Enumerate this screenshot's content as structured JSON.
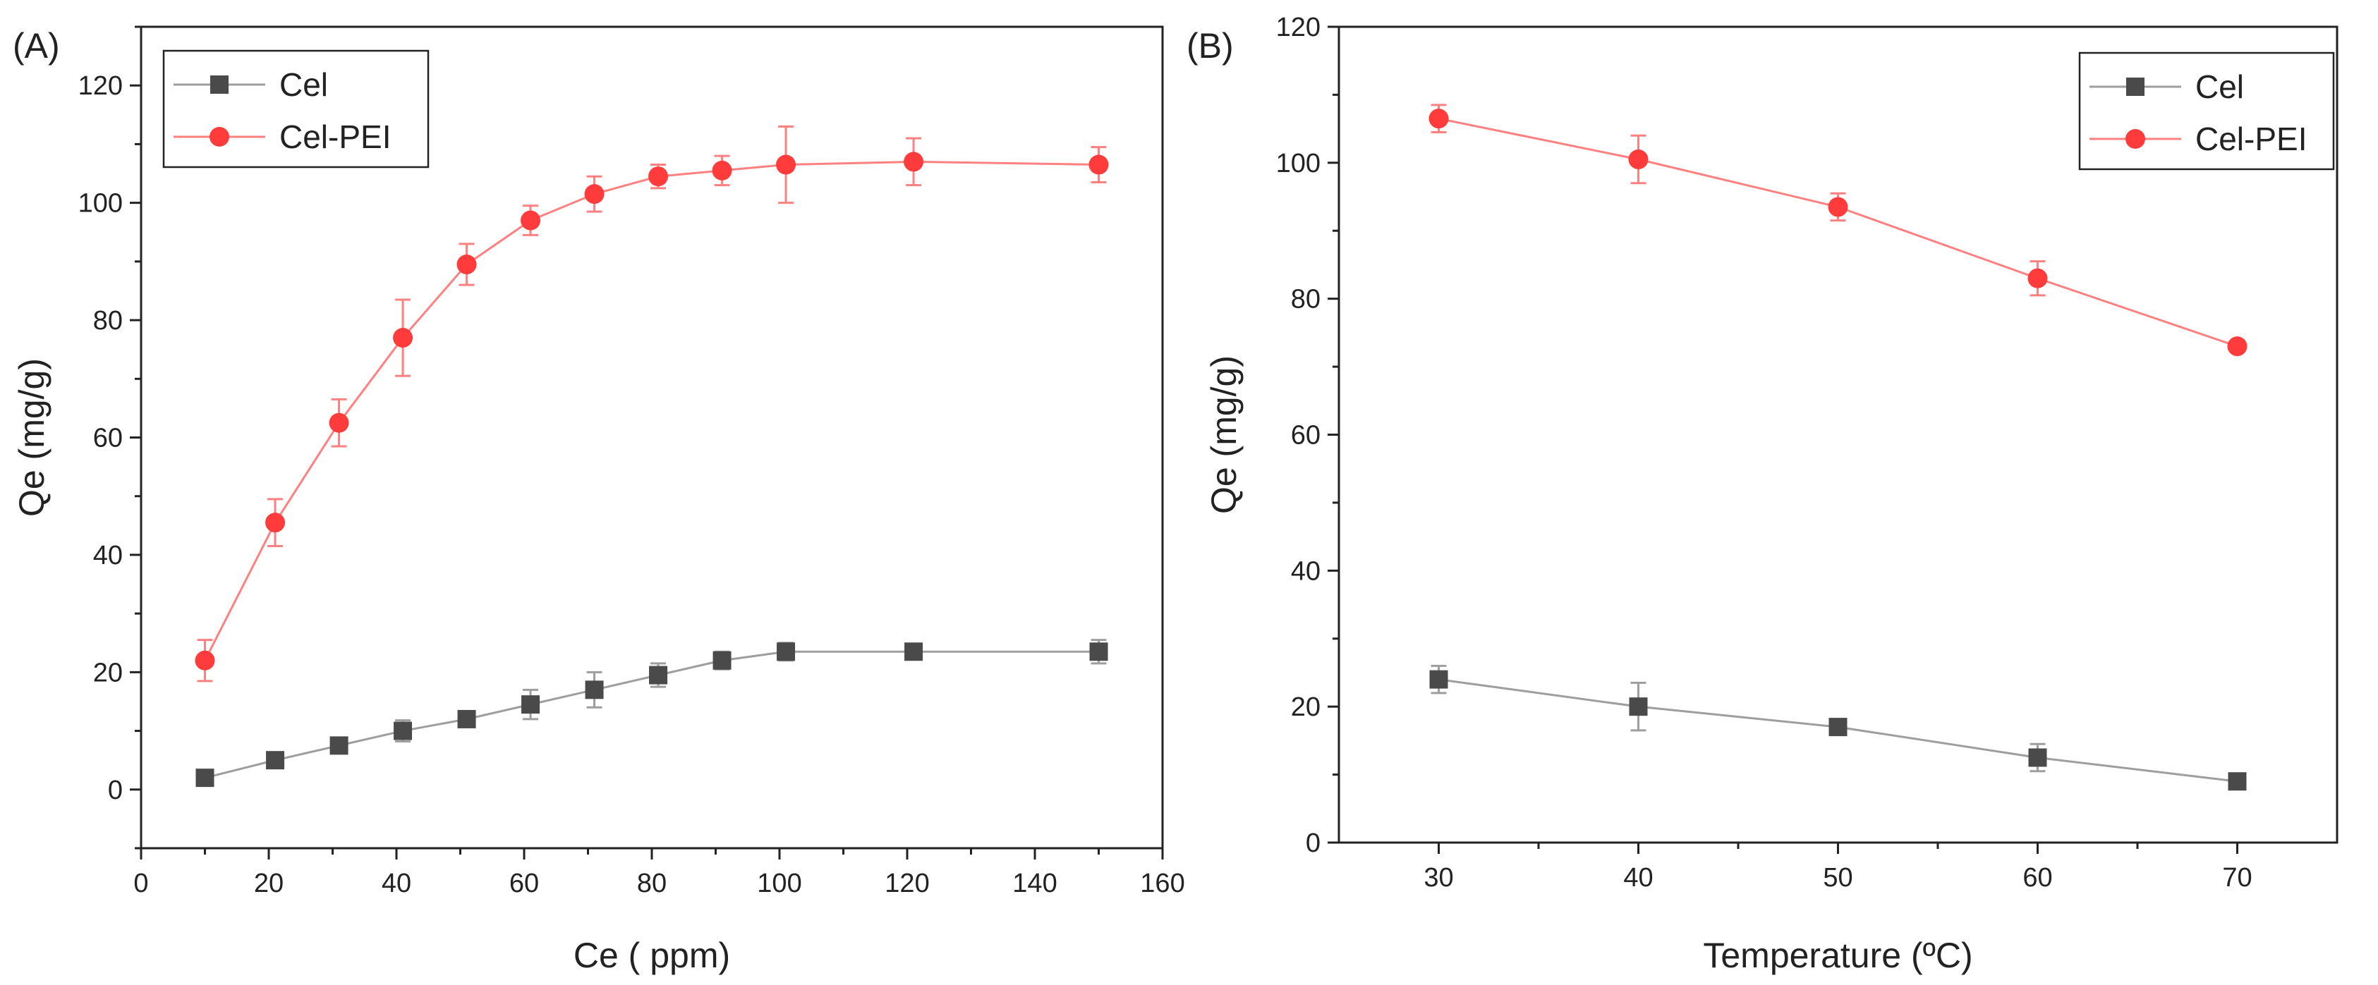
{
  "chart_data": [
    {
      "type": "line",
      "panel_label": "(A)",
      "title": "",
      "xlabel": "Ce ( ppm)",
      "ylabel": "Qe (mg/g)",
      "xlim": [
        0,
        160
      ],
      "ylim": [
        -10,
        130
      ],
      "xticks": [
        0,
        20,
        40,
        60,
        80,
        100,
        120,
        140,
        160
      ],
      "yticks": [
        0,
        20,
        40,
        60,
        80,
        100,
        120
      ],
      "legend_position": "top-left",
      "series": [
        {
          "name": "Cel",
          "color": "#4a4a4a",
          "line_color": "#9e9e9e",
          "marker": "square",
          "x": [
            10,
            21,
            31,
            41,
            51,
            61,
            71,
            81,
            91,
            101,
            121,
            150
          ],
          "values": [
            2,
            5,
            7.5,
            10,
            12,
            14.5,
            17,
            19.5,
            22,
            23.5,
            23.5,
            23.5
          ],
          "errors": [
            0.5,
            0.8,
            1.2,
            1.8,
            1.2,
            2.5,
            3,
            2,
            1.5,
            1.5,
            1,
            2
          ]
        },
        {
          "name": "Cel-PEI",
          "color": "#ff3b3b",
          "line_color": "#ff8080",
          "marker": "circle",
          "x": [
            10,
            21,
            31,
            41,
            51,
            61,
            71,
            81,
            91,
            101,
            121,
            150
          ],
          "values": [
            22,
            45.5,
            62.5,
            77,
            89.5,
            97,
            101.5,
            104.5,
            105.5,
            106.5,
            107,
            106.5
          ],
          "errors": [
            3.5,
            4,
            4,
            6.5,
            3.5,
            2.5,
            3,
            2,
            2.5,
            6.5,
            4,
            3
          ]
        }
      ]
    },
    {
      "type": "line",
      "panel_label": "(B)",
      "title": "",
      "xlabel": "Temperature (ºC)",
      "ylabel": "Qe (mg/g)",
      "xlim": [
        25,
        75
      ],
      "ylim": [
        0,
        120
      ],
      "xticks": [
        30,
        40,
        50,
        60,
        70
      ],
      "yticks": [
        0,
        20,
        40,
        60,
        80,
        100,
        120
      ],
      "legend_position": "top-right",
      "series": [
        {
          "name": "Cel",
          "color": "#4a4a4a",
          "line_color": "#9e9e9e",
          "marker": "square",
          "x": [
            30,
            40,
            50,
            60,
            70
          ],
          "values": [
            24,
            20,
            17,
            12.5,
            9
          ],
          "errors": [
            2,
            3.5,
            0.5,
            2,
            0.5
          ]
        },
        {
          "name": "Cel-PEI",
          "color": "#ff3b3b",
          "line_color": "#ff8080",
          "marker": "circle",
          "x": [
            30,
            40,
            50,
            60,
            70
          ],
          "values": [
            106.5,
            100.5,
            93.5,
            83,
            73
          ],
          "errors": [
            2,
            3.5,
            2,
            2.5,
            0.5
          ]
        }
      ]
    }
  ]
}
